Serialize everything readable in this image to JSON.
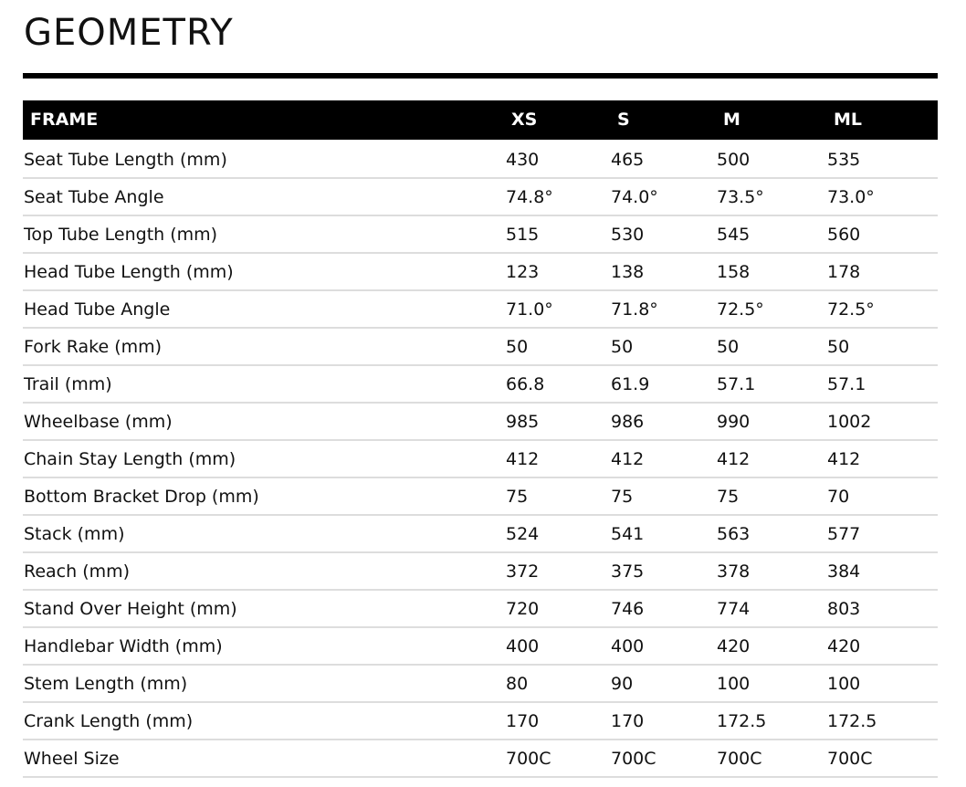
{
  "header": {
    "title": "GEOMETRY"
  },
  "table": {
    "columns": [
      "FRAME",
      "XS",
      "S",
      "M",
      "ML"
    ],
    "rows": [
      [
        "Seat Tube Length (mm)",
        "430",
        "465",
        "500",
        "535"
      ],
      [
        "Seat Tube Angle",
        "74.8°",
        "74.0°",
        "73.5°",
        "73.0°"
      ],
      [
        "Top Tube Length (mm)",
        "515",
        "530",
        "545",
        "560"
      ],
      [
        "Head Tube Length (mm)",
        "123",
        "138",
        "158",
        "178"
      ],
      [
        "Head Tube Angle",
        "71.0°",
        "71.8°",
        "72.5°",
        "72.5°"
      ],
      [
        "Fork Rake (mm)",
        "50",
        "50",
        "50",
        "50"
      ],
      [
        "Trail (mm)",
        "66.8",
        "61.9",
        "57.1",
        "57.1"
      ],
      [
        "Wheelbase (mm)",
        "985",
        "986",
        "990",
        "1002"
      ],
      [
        "Chain Stay Length (mm)",
        "412",
        "412",
        "412",
        "412"
      ],
      [
        "Bottom Bracket Drop (mm)",
        "75",
        "75",
        "75",
        "70"
      ],
      [
        "Stack (mm)",
        "524",
        "541",
        "563",
        "577"
      ],
      [
        "Reach (mm)",
        "372",
        "375",
        "378",
        "384"
      ],
      [
        "Stand Over Height (mm)",
        "720",
        "746",
        "774",
        "803"
      ],
      [
        "Handlebar Width (mm)",
        "400",
        "400",
        "420",
        "420"
      ],
      [
        "Stem Length (mm)",
        "80",
        "90",
        "100",
        "100"
      ],
      [
        "Crank Length (mm)",
        "170",
        "170",
        "172.5",
        "172.5"
      ],
      [
        "Wheel Size",
        "700C",
        "700C",
        "700C",
        "700C"
      ]
    ]
  }
}
